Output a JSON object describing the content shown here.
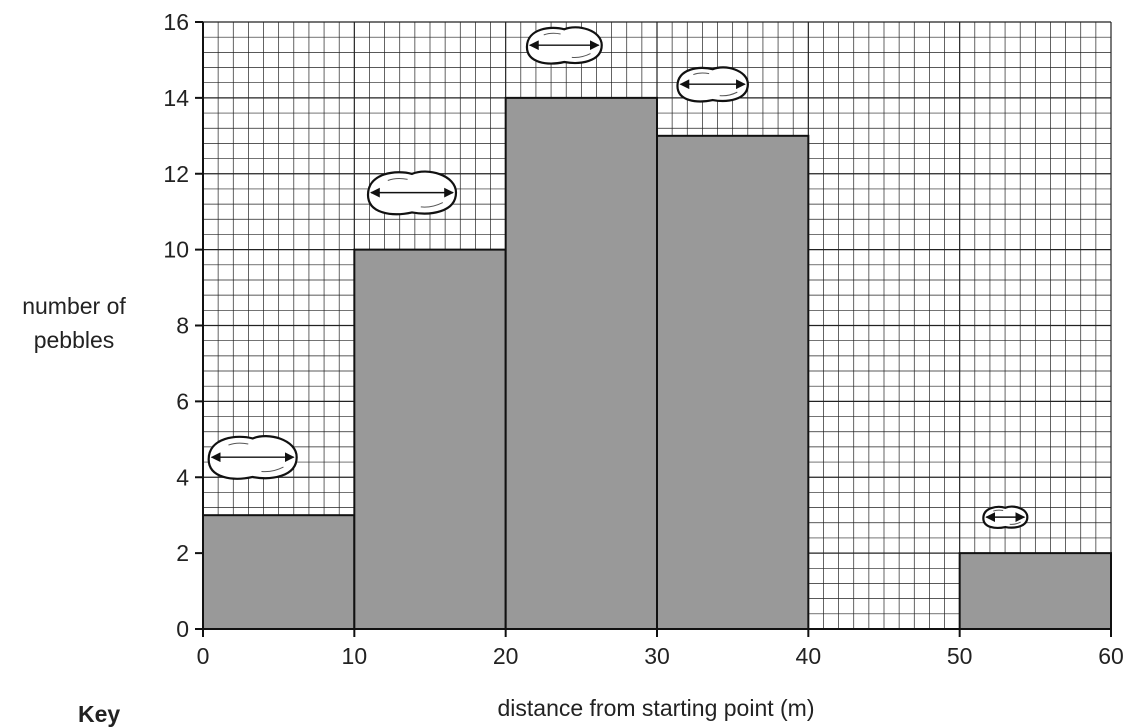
{
  "chart_data": {
    "type": "bar",
    "x_bins": [
      [
        0,
        10
      ],
      [
        10,
        20
      ],
      [
        20,
        30
      ],
      [
        30,
        40
      ],
      [
        40,
        50
      ],
      [
        50,
        60
      ]
    ],
    "values": [
      3,
      10,
      14,
      13,
      0,
      2
    ],
    "pebble_relative_size": [
      1.0,
      1.0,
      0.85,
      0.8,
      0,
      0.5
    ],
    "xlabel": "distance from starting point (m)",
    "ylabel_line1": "number of",
    "ylabel_line2": "pebbles",
    "xlim": [
      0,
      60
    ],
    "ylim": [
      0,
      16
    ],
    "x_ticks": [
      "0",
      "10",
      "20",
      "30",
      "40",
      "50",
      "60"
    ],
    "y_ticks": [
      "0",
      "2",
      "4",
      "6",
      "8",
      "10",
      "12",
      "14",
      "16"
    ],
    "grid": true,
    "bar_color": "#999999",
    "grid_color": "#222222"
  },
  "key_label": "Key"
}
